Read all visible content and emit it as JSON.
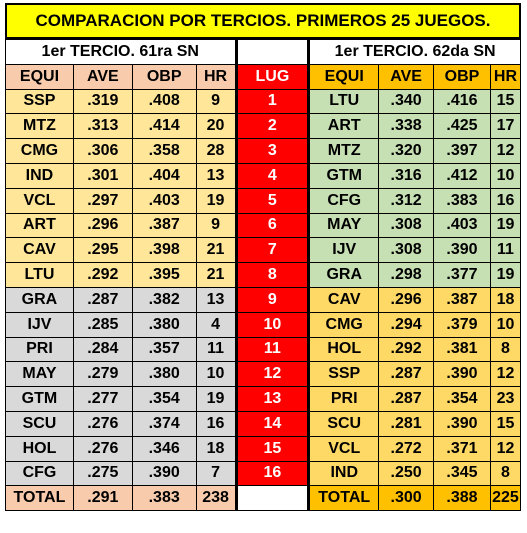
{
  "title": "COMPARACION POR TERCIOS. PRIMEROS 25 JUEGOS.",
  "left_caption": "1er TERCIO.  61ra  SN",
  "right_caption": "1er TERCIO.  62da SN",
  "headers": {
    "team": "EQUI",
    "ave": "AVE",
    "obp": "OBP",
    "hr": "HR",
    "lug": "LUG"
  },
  "rows": [
    {
      "l": [
        "SSP",
        ".319",
        ".408",
        "9"
      ],
      "lug": "1",
      "r": [
        "LTU",
        ".340",
        ".416",
        "15"
      ]
    },
    {
      "l": [
        "MTZ",
        ".313",
        ".414",
        "20"
      ],
      "lug": "2",
      "r": [
        "ART",
        ".338",
        ".425",
        "17"
      ]
    },
    {
      "l": [
        "CMG",
        ".306",
        ".358",
        "28"
      ],
      "lug": "3",
      "r": [
        "MTZ",
        ".320",
        ".397",
        "12"
      ]
    },
    {
      "l": [
        "IND",
        ".301",
        ".404",
        "13"
      ],
      "lug": "4",
      "r": [
        "GTM",
        ".316",
        ".412",
        "10"
      ]
    },
    {
      "l": [
        "VCL",
        ".297",
        ".403",
        "19"
      ],
      "lug": "5",
      "r": [
        "CFG",
        ".312",
        ".383",
        "16"
      ]
    },
    {
      "l": [
        "ART",
        ".296",
        ".387",
        "9"
      ],
      "lug": "6",
      "r": [
        "MAY",
        ".308",
        ".403",
        "19"
      ]
    },
    {
      "l": [
        "CAV",
        ".295",
        ".398",
        "21"
      ],
      "lug": "7",
      "r": [
        "IJV",
        ".308",
        ".390",
        "11"
      ]
    },
    {
      "l": [
        "LTU",
        ".292",
        ".395",
        "21"
      ],
      "lug": "8",
      "r": [
        "GRA",
        ".298",
        ".377",
        "19"
      ]
    },
    {
      "l": [
        "GRA",
        ".287",
        ".382",
        "13"
      ],
      "lug": "9",
      "r": [
        "CAV",
        ".296",
        ".387",
        "18"
      ]
    },
    {
      "l": [
        "IJV",
        ".285",
        ".380",
        "4"
      ],
      "lug": "10",
      "r": [
        "CMG",
        ".294",
        ".379",
        "10"
      ]
    },
    {
      "l": [
        "PRI",
        ".284",
        ".357",
        "11"
      ],
      "lug": "11",
      "r": [
        "HOL",
        ".292",
        ".381",
        "8"
      ]
    },
    {
      "l": [
        "MAY",
        ".279",
        ".380",
        "10"
      ],
      "lug": "12",
      "r": [
        "SSP",
        ".287",
        ".390",
        "12"
      ]
    },
    {
      "l": [
        "GTM",
        ".277",
        ".354",
        "19"
      ],
      "lug": "13",
      "r": [
        "PRI",
        ".287",
        ".354",
        "23"
      ]
    },
    {
      "l": [
        "SCU",
        ".276",
        ".374",
        "16"
      ],
      "lug": "14",
      "r": [
        "SCU",
        ".281",
        ".390",
        "15"
      ]
    },
    {
      "l": [
        "HOL",
        ".276",
        ".346",
        "18"
      ],
      "lug": "15",
      "r": [
        "VCL",
        ".272",
        ".371",
        "12"
      ]
    },
    {
      "l": [
        "CFG",
        ".275",
        ".390",
        "7"
      ],
      "lug": "16",
      "r": [
        "IND",
        ".250",
        ".345",
        "8"
      ]
    }
  ],
  "totals": {
    "l": [
      "TOTAL",
      ".291",
      ".383",
      "238"
    ],
    "r": [
      "TOTAL",
      ".300",
      ".388",
      "225"
    ]
  },
  "colors": {
    "title_bg": "#ffff00",
    "left_header": "#f8cbad",
    "left_top": "#ffe699",
    "left_bottom": "#d9d9d9",
    "lug": "#ff0000",
    "right_header": "#ffc000",
    "right_top": "#c6e0b4",
    "right_bottom": "#ffd966"
  }
}
